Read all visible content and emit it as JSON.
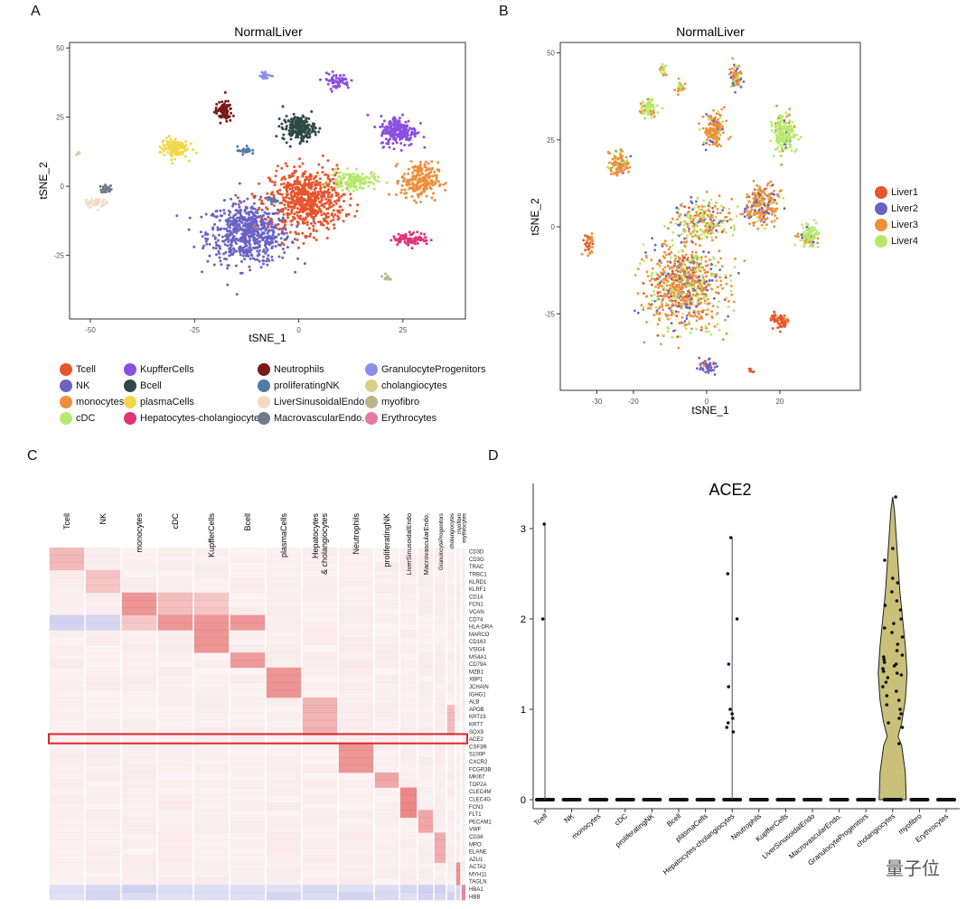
{
  "panels": {
    "a": "A",
    "b": "B",
    "c": "C",
    "d": "D"
  },
  "watermark": "量子位",
  "cell_types": [
    {
      "name": "Tcell",
      "color": "#e8552d"
    },
    {
      "name": "NK",
      "color": "#6b63c4"
    },
    {
      "name": "monocytes",
      "color": "#ef8f3a"
    },
    {
      "name": "cDC",
      "color": "#b7ea6c"
    },
    {
      "name": "KupfferCells",
      "color": "#8a4fe0"
    },
    {
      "name": "Bcell",
      "color": "#2f4a46"
    },
    {
      "name": "plasmaCells",
      "color": "#f1d84a"
    },
    {
      "name": "Hepatocytes-cholangiocytes",
      "color": "#e0357a"
    },
    {
      "name": "Neutrophils",
      "color": "#7a1a1a"
    },
    {
      "name": "proliferatingNK",
      "color": "#4f7ba8"
    },
    {
      "name": "LiverSinusoidalEndo",
      "color": "#f5d9c2"
    },
    {
      "name": "MacrovascularEndo.",
      "color": "#707a8a"
    },
    {
      "name": "GranulocyteProgenitors",
      "color": "#8a90e8"
    },
    {
      "name": "cholangiocytes",
      "color": "#d8cf8f"
    },
    {
      "name": "myofibro",
      "color": "#bcb48a"
    },
    {
      "name": "Erythrocytes",
      "color": "#e77aa0"
    }
  ],
  "chart_data": [
    {
      "type": "scatter",
      "panel": "A",
      "title": "NormalLiver",
      "xlabel": "tSNE_1",
      "ylabel": "tSNE_2",
      "xlim": [
        -55,
        40
      ],
      "ylim": [
        -48,
        52
      ],
      "xticks": [
        "-50",
        "-25",
        "0",
        "25"
      ],
      "yticks": [
        "-25",
        "0",
        "25",
        "50"
      ],
      "legend": "bottom",
      "clusters": [
        {
          "label": "NK",
          "cx": -12,
          "cy": -17,
          "sx": 9,
          "sy": 10,
          "n": 650
        },
        {
          "label": "Tcell",
          "cx": 2,
          "cy": -5,
          "sx": 8,
          "sy": 10,
          "n": 650
        },
        {
          "label": "cDC",
          "cx": 13,
          "cy": 2,
          "sx": 5,
          "sy": 3,
          "n": 140
        },
        {
          "label": "monocytes",
          "cx": 29,
          "cy": 2,
          "sx": 4,
          "sy": 6,
          "n": 220
        },
        {
          "label": "KupfferCells",
          "cx": 24,
          "cy": 20,
          "sx": 4,
          "sy": 5,
          "n": 210
        },
        {
          "label": "KupfferCells",
          "cx": 9,
          "cy": 38,
          "sx": 3,
          "sy": 2.5,
          "n": 60
        },
        {
          "label": "Bcell",
          "cx": 0,
          "cy": 21,
          "sx": 3.5,
          "sy": 4,
          "n": 200
        },
        {
          "label": "plasmaCells",
          "cx": -30,
          "cy": 14,
          "sx": 3,
          "sy": 3.5,
          "n": 120
        },
        {
          "label": "Neutrophils",
          "cx": -18,
          "cy": 27,
          "sx": 1.8,
          "sy": 3.5,
          "n": 80
        },
        {
          "label": "proliferatingNK",
          "cx": -13,
          "cy": 13,
          "sx": 1.5,
          "sy": 1.2,
          "n": 25
        },
        {
          "label": "proliferatingNK",
          "cx": -6,
          "cy": -5,
          "sx": 1,
          "sy": 1,
          "n": 15
        },
        {
          "label": "Hepatocytes-cholangiocytes",
          "cx": 27,
          "cy": -19,
          "sx": 4,
          "sy": 2,
          "n": 90
        },
        {
          "label": "GranulocyteProgenitors",
          "cx": -8,
          "cy": 40,
          "sx": 1.2,
          "sy": 1.2,
          "n": 20
        },
        {
          "label": "MacrovascularEndo.",
          "cx": -46,
          "cy": -1,
          "sx": 1.5,
          "sy": 1.2,
          "n": 30
        },
        {
          "label": "LiverSinusoidalEndo",
          "cx": -49,
          "cy": -6,
          "sx": 2.5,
          "sy": 1.5,
          "n": 40
        },
        {
          "label": "myofibro",
          "cx": 21,
          "cy": -33,
          "sx": 0.8,
          "sy": 1,
          "n": 12
        },
        {
          "label": "cholangiocytes",
          "cx": -53,
          "cy": 12,
          "sx": 0.5,
          "sy": 0.6,
          "n": 5
        }
      ]
    },
    {
      "type": "scatter",
      "panel": "B",
      "title": "NormalLiver",
      "xlabel": "tSNE_1",
      "ylabel": "tSNE_2",
      "xlim": [
        -40,
        42
      ],
      "ylim": [
        -47,
        53
      ],
      "xticks": [
        "-30",
        "-20",
        "0",
        "20"
      ],
      "yticks": [
        "-25",
        "0",
        "25",
        "50"
      ],
      "legend": "right",
      "series": [
        {
          "name": "Liver1",
          "color": "#e8552d"
        },
        {
          "name": "Liver2",
          "color": "#6b63c4"
        },
        {
          "name": "Liver3",
          "color": "#ef8f3a"
        },
        {
          "name": "Liver4",
          "color": "#b7ea6c"
        }
      ],
      "clusters": [
        {
          "cx": -6,
          "cy": -17,
          "sx": 9,
          "sy": 11,
          "n": 800,
          "mix": [
            0.05,
            0.15,
            0.55,
            0.25
          ]
        },
        {
          "cx": -1,
          "cy": 2,
          "sx": 7,
          "sy": 5,
          "n": 250,
          "mix": [
            0.1,
            0.15,
            0.35,
            0.4
          ]
        },
        {
          "cx": 15,
          "cy": 6,
          "sx": 4,
          "sy": 5,
          "n": 250,
          "mix": [
            0.05,
            0.15,
            0.7,
            0.1
          ]
        },
        {
          "cx": 21,
          "cy": 27,
          "sx": 3,
          "sy": 5,
          "n": 220,
          "mix": [
            0,
            0.05,
            0.1,
            0.85
          ]
        },
        {
          "cx": 28,
          "cy": -3,
          "sx": 2.5,
          "sy": 3,
          "n": 120,
          "mix": [
            0,
            0.1,
            0.1,
            0.8
          ]
        },
        {
          "cx": 2,
          "cy": 28,
          "sx": 2.5,
          "sy": 4,
          "n": 180,
          "mix": [
            0,
            0.1,
            0.8,
            0.1
          ]
        },
        {
          "cx": -16,
          "cy": 34,
          "sx": 2,
          "sy": 2.5,
          "n": 80,
          "mix": [
            0,
            0,
            0.2,
            0.8
          ]
        },
        {
          "cx": -24,
          "cy": 18,
          "sx": 2.5,
          "sy": 3,
          "n": 120,
          "mix": [
            0,
            0.05,
            0.75,
            0.2
          ]
        },
        {
          "cx": -32,
          "cy": -5,
          "sx": 1.2,
          "sy": 3,
          "n": 40,
          "mix": [
            0.3,
            0,
            0.7,
            0
          ]
        },
        {
          "cx": -7,
          "cy": 40,
          "sx": 1.2,
          "sy": 1.5,
          "n": 30,
          "mix": [
            0,
            0,
            0.6,
            0.4
          ]
        },
        {
          "cx": 8,
          "cy": 43,
          "sx": 1.5,
          "sy": 4,
          "n": 70,
          "mix": [
            0,
            0.3,
            0.6,
            0.1
          ]
        },
        {
          "cx": -12,
          "cy": 45,
          "sx": 1,
          "sy": 1.5,
          "n": 20,
          "mix": [
            0,
            0,
            0.4,
            0.6
          ]
        },
        {
          "cx": 20,
          "cy": -27,
          "sx": 2.5,
          "sy": 2,
          "n": 70,
          "mix": [
            0.9,
            0,
            0.1,
            0
          ]
        },
        {
          "cx": 0,
          "cy": -40,
          "sx": 2,
          "sy": 2,
          "n": 50,
          "mix": [
            0.1,
            0.8,
            0.1,
            0
          ]
        },
        {
          "cx": 12,
          "cy": -41,
          "sx": 0.6,
          "sy": 1,
          "n": 8,
          "mix": [
            1,
            0,
            0,
            0
          ]
        }
      ]
    },
    {
      "type": "heatmap",
      "panel": "C",
      "columns": [
        "Tcell",
        "NK",
        "monocytes",
        "cDC",
        "KupfferCells",
        "Bcell",
        "plasmaCells",
        "Hepatocytes\n& cholangiocytes",
        "Neutrophils",
        "proliferatingNK",
        "LiverSinusoidalEndo",
        "MacrovascularEndo.",
        "GranulocyteProgenitors",
        "cholangiocytes",
        "myofibro",
        "erythrocytes"
      ],
      "column_widths": [
        40,
        40,
        40,
        40,
        40,
        40,
        40,
        40,
        40,
        28,
        20,
        18,
        14,
        10,
        6,
        5
      ],
      "genes": [
        "CD3D",
        "CD3G",
        "TRAC",
        "TRBC1",
        "KLRD1",
        "KLRF1",
        "CD14",
        "FCN1",
        "VCAN",
        "CD74",
        "HLA-DRA",
        "MARCO",
        "CD163",
        "VSIG4",
        "MS4A1",
        "CD79A",
        "MZB1",
        "XBP1",
        "JCHAIN",
        "IGHG1",
        "ALB",
        "APOB",
        "KRT19",
        "KRT7",
        "SOX9",
        "ACE2",
        "CSF3R",
        "S100P",
        "CXCR2",
        "FCGR3B",
        "MKI67",
        "TOP2A",
        "CLEC4M",
        "CLEC4G",
        "FCN3",
        "FLT1",
        "PECAM1",
        "VWF",
        "CD34",
        "MPO",
        "ELANE",
        "AZU1",
        "ACTA2",
        "MYH11",
        "TAGLN",
        "HBA1",
        "HBB"
      ],
      "highlighted_gene": "ACE2",
      "blocks": [
        {
          "col": 0,
          "genes": [
            0,
            3
          ],
          "level": 0.45
        },
        {
          "col": 1,
          "genes": [
            3,
            6
          ],
          "level": 0.35
        },
        {
          "col": 2,
          "genes": [
            6,
            9
          ],
          "level": 0.75
        },
        {
          "col": 3,
          "genes": [
            6,
            9
          ],
          "level": 0.4
        },
        {
          "col": 4,
          "genes": [
            6,
            9
          ],
          "level": 0.35
        },
        {
          "col": 2,
          "genes": [
            9,
            11
          ],
          "level": 0.35
        },
        {
          "col": 3,
          "genes": [
            9,
            11
          ],
          "level": 0.75
        },
        {
          "col": 4,
          "genes": [
            9,
            14
          ],
          "level": 0.75
        },
        {
          "col": 5,
          "genes": [
            9,
            11
          ],
          "level": 0.75
        },
        {
          "col": 5,
          "genes": [
            14,
            16
          ],
          "level": 0.7
        },
        {
          "col": 6,
          "genes": [
            16,
            20
          ],
          "level": 0.75
        },
        {
          "col": 7,
          "genes": [
            20,
            25
          ],
          "level": 0.5
        },
        {
          "col": 8,
          "genes": [
            26,
            30
          ],
          "level": 0.75
        },
        {
          "col": 9,
          "genes": [
            30,
            32
          ],
          "level": 0.6
        },
        {
          "col": 10,
          "genes": [
            32,
            36
          ],
          "level": 0.85
        },
        {
          "col": 11,
          "genes": [
            35,
            38
          ],
          "level": 0.6
        },
        {
          "col": 12,
          "genes": [
            38,
            42
          ],
          "level": 0.55
        },
        {
          "col": 13,
          "genes": [
            21,
            25
          ],
          "level": 0.45
        },
        {
          "col": 14,
          "genes": [
            42,
            45
          ],
          "level": 0.8
        },
        {
          "col": 15,
          "genes": [
            45,
            47
          ],
          "level": 0.8
        }
      ]
    },
    {
      "type": "violin",
      "panel": "D",
      "title": "ACE2",
      "ylim": [
        0,
        3.4
      ],
      "yticks": [
        "0",
        "1",
        "2",
        "3"
      ],
      "categories": [
        "Tcell",
        "NK",
        "monocytes",
        "cDC",
        "proliferatingNK",
        "Bcell",
        "plasmaCells",
        "Hepatocytes-cholangiocytes",
        "Neutrophils",
        "KupfferCells",
        "LiverSinusoidalEndo",
        "MacrovascularEndo.",
        "GranulocyteProgenitors",
        "cholangiocytes",
        "myofibro",
        "Erythrocytes"
      ],
      "max_values": [
        3.05,
        0,
        0,
        0,
        0,
        0,
        0,
        2.9,
        0,
        0,
        0,
        0,
        0,
        3.35,
        0,
        0
      ],
      "points": [
        {
          "cat": 0,
          "values": [
            3.05,
            2.0
          ]
        },
        {
          "cat": 7,
          "values": [
            2.9,
            2.5,
            2.0,
            1.5,
            1.25,
            1.0,
            0.95,
            0.9,
            0.85,
            0.8,
            0.75
          ]
        },
        {
          "cat": 13,
          "values": [
            3.35,
            2.78,
            2.65,
            2.45,
            2.4,
            2.3,
            2.2,
            2.15,
            2.1,
            2.0,
            1.95,
            1.9,
            1.85,
            1.8,
            1.72,
            1.65,
            1.6,
            1.58,
            1.55,
            1.52,
            1.5,
            1.48,
            1.45,
            1.42,
            1.4,
            1.38,
            1.35,
            1.3,
            1.25,
            1.2,
            1.15,
            1.1,
            1.05,
            1.0,
            0.95,
            0.9,
            0.85,
            0.8,
            0.62
          ]
        }
      ],
      "violin_fill": "#c9c07a"
    }
  ]
}
